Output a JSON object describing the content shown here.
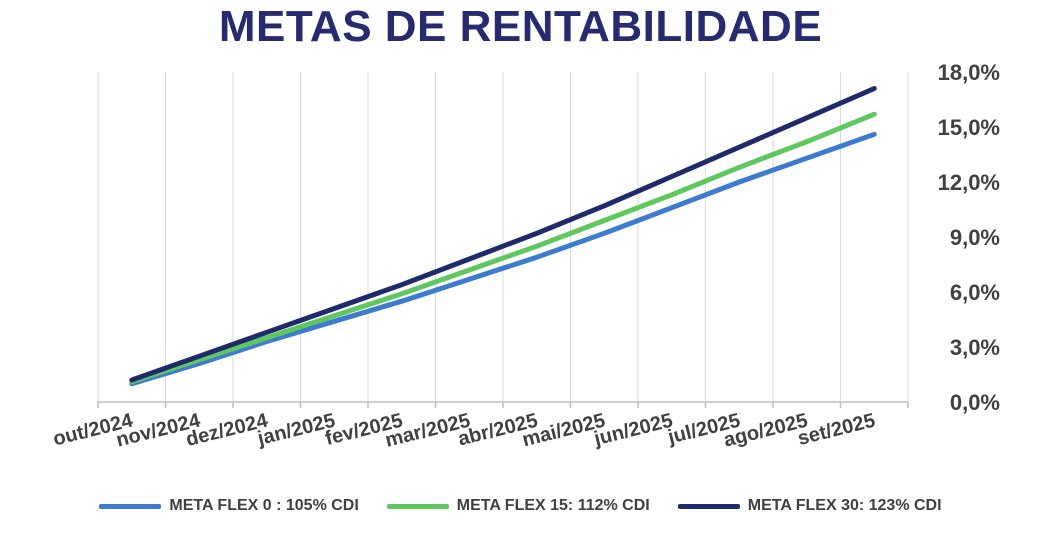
{
  "chart_data": {
    "type": "line",
    "title": "METAS DE RENTABILIDADE",
    "categories": [
      "out/2024",
      "nov/2024",
      "dez/2024",
      "jan/2025",
      "fev/2025",
      "mar/2025",
      "abr/2025",
      "mai/2025",
      "jun/2025",
      "jul/2025",
      "ago/2025",
      "set/2025"
    ],
    "y_axis_position": "right",
    "ylim": [
      0,
      18
    ],
    "yticks": [
      0,
      3,
      6,
      9,
      12,
      15,
      18
    ],
    "ytick_labels": [
      "0,0%",
      "3,0%",
      "6,0%",
      "9,0%",
      "12,0%",
      "15,0%",
      "18,0%"
    ],
    "grid": "vertical",
    "legend_position": "bottom",
    "series": [
      {
        "name": "META FLEX 0 : 105% CDI",
        "color": "#3d7bd1",
        "values": [
          1.0,
          2.1,
          3.3,
          4.4,
          5.5,
          6.7,
          7.9,
          9.2,
          10.6,
          12.0,
          13.3,
          14.6
        ]
      },
      {
        "name": "META FLEX 15: 112% CDI",
        "color": "#5ec85e",
        "values": [
          1.1,
          2.3,
          3.5,
          4.7,
          5.9,
          7.2,
          8.5,
          9.9,
          11.3,
          12.8,
          14.2,
          15.7
        ]
      },
      {
        "name": "META FLEX 30: 123% CDI",
        "color": "#1f2a6b",
        "values": [
          1.2,
          2.5,
          3.8,
          5.1,
          6.4,
          7.8,
          9.2,
          10.7,
          12.3,
          13.9,
          15.5,
          17.1
        ]
      }
    ]
  }
}
